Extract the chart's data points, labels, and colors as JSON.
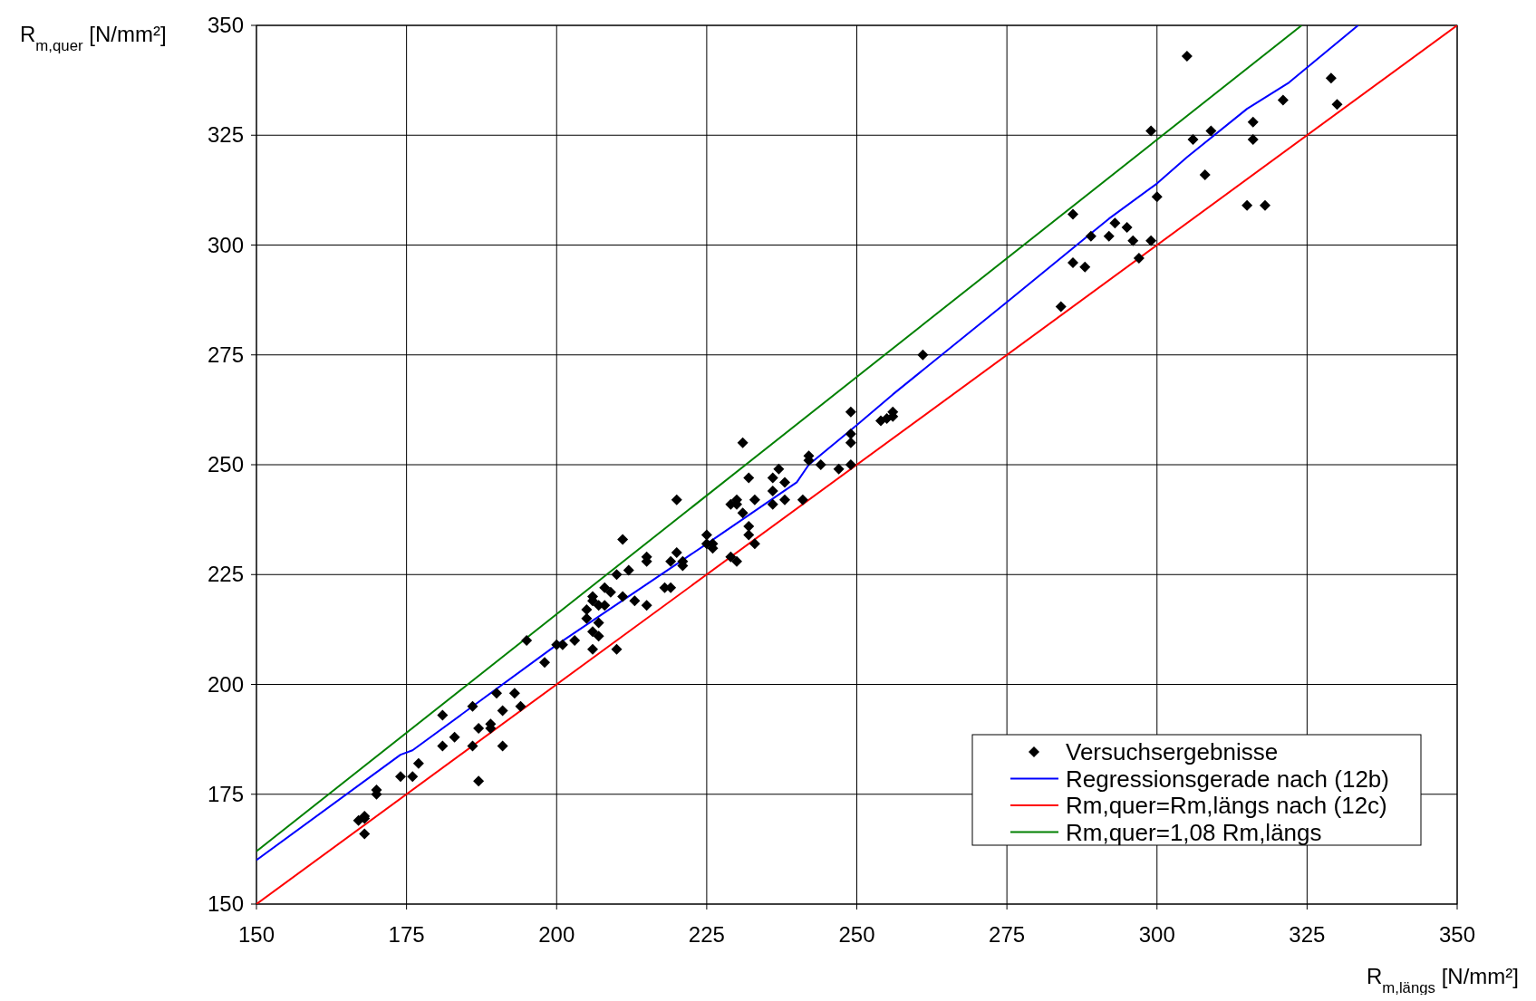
{
  "chart_data": {
    "type": "scatter",
    "xlabel": "R$_{m,längs}$ [N/mm²]",
    "ylabel": "R$_{m,quer}$ [N/mm²]",
    "xlim": [
      150,
      350
    ],
    "ylim": [
      150,
      350
    ],
    "xticks": [
      150,
      175,
      200,
      225,
      250,
      275,
      300,
      325,
      350
    ],
    "yticks": [
      150,
      175,
      200,
      225,
      250,
      275,
      300,
      325,
      350
    ],
    "grid": true,
    "legend": "bottom right",
    "series": [
      {
        "name": "Versuchsergebnisse",
        "marker": "diamond",
        "color": "#000000",
        "x": [
          167,
          168,
          168,
          168,
          170,
          170,
          174,
          176,
          177,
          181,
          181,
          183,
          186,
          186,
          187,
          187,
          189,
          189,
          190,
          191,
          191,
          193,
          194,
          195,
          198,
          200,
          201,
          203,
          205,
          205,
          206,
          206,
          206,
          206,
          207,
          207,
          207,
          208,
          208,
          209,
          210,
          210,
          211,
          211,
          212,
          213,
          215,
          215,
          215,
          218,
          219,
          219,
          220,
          220,
          221,
          221,
          225,
          225,
          226,
          226,
          229,
          229,
          230,
          230,
          230,
          231,
          231,
          232,
          232,
          232,
          233,
          233,
          236,
          236,
          236,
          237,
          238,
          238,
          241,
          242,
          242,
          244,
          247,
          249,
          249,
          249,
          249,
          254,
          255,
          256,
          256,
          261,
          284,
          286,
          286,
          288,
          289,
          292,
          293,
          295,
          296,
          297,
          299,
          299,
          300,
          305,
          306,
          308,
          309,
          315,
          316,
          316,
          318,
          321,
          329,
          330
        ],
        "values": [
          169,
          169.5,
          170,
          166,
          176,
          175,
          179,
          179,
          182,
          193,
          186,
          188,
          195,
          186,
          190,
          178,
          191,
          190,
          198,
          194,
          186,
          198,
          195,
          210,
          205,
          209,
          209,
          210,
          217,
          215,
          220,
          219,
          212,
          208,
          218,
          214,
          211,
          222,
          218,
          221,
          225,
          208,
          233,
          220,
          226,
          219,
          229,
          228,
          218,
          222,
          222,
          228,
          242,
          230,
          228,
          227,
          234,
          232,
          232,
          231,
          241,
          229,
          242,
          241,
          228,
          255,
          239,
          247,
          236,
          234,
          242,
          232,
          247,
          244,
          241,
          249,
          246,
          242,
          242,
          252,
          251,
          250,
          249,
          262,
          257,
          255,
          250,
          260,
          260.5,
          261,
          262,
          275,
          286,
          307,
          296,
          295,
          302,
          302,
          305,
          304,
          301,
          297,
          326,
          301,
          311,
          343,
          324,
          316,
          326,
          309,
          328,
          324,
          309,
          333,
          338,
          332
        ]
      },
      {
        "name": "Regressionsgerade nach (12b)",
        "type": "line",
        "color": "#0000ff",
        "x": [
          150,
          174,
          176,
          200,
          225,
          240,
          242,
          250,
          256,
          275,
          292,
          300,
          305,
          315,
          322,
          333.5
        ],
        "values": [
          160,
          184,
          185,
          209,
          232,
          246,
          250,
          259,
          266,
          287,
          306,
          314,
          320,
          331,
          337,
          350
        ]
      },
      {
        "name": "Rm,quer=Rm,längs nach (12c)",
        "type": "line",
        "color": "#ff0000",
        "x": [
          150,
          350
        ],
        "values": [
          150,
          350
        ]
      },
      {
        "name": "Rm,quer=1,08 Rm,längs",
        "type": "line",
        "color": "#008000",
        "x": [
          150,
          324.1
        ],
        "values": [
          162,
          350
        ]
      }
    ]
  }
}
